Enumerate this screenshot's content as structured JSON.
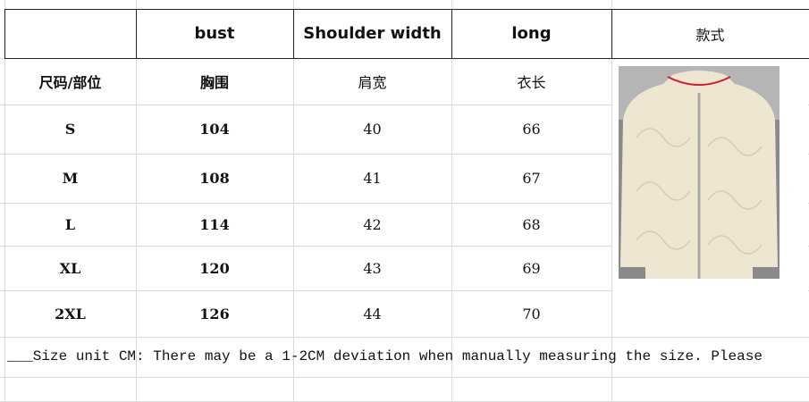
{
  "header": {
    "columns": [
      "bust",
      "Shoulder width",
      "long",
      "款式"
    ]
  },
  "table": {
    "rows": [
      [
        "尺码/部位",
        "胸围",
        "肩宽",
        "衣长"
      ],
      [
        "S",
        104,
        40,
        66
      ],
      [
        "M",
        108,
        41,
        67
      ],
      [
        "L",
        114,
        42,
        68
      ],
      [
        "XL",
        120,
        43,
        69
      ],
      [
        "2XL",
        126,
        44,
        70
      ]
    ]
  },
  "note": "___Size unit CM: There may be a 1-2CM deviation when manually measuring the size. Please"
}
